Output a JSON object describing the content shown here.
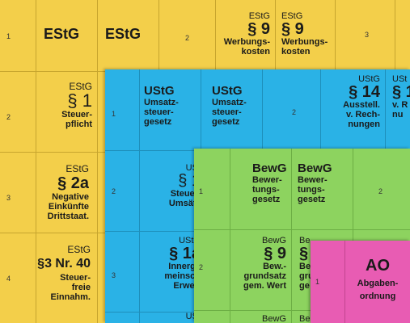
{
  "estg": {
    "rows": [
      {
        "num": "1",
        "col1": "EStG",
        "col2": "EStG",
        "col3num": "2",
        "code": "EStG",
        "para": "§ 9",
        "sub": [
          "Werbungs-",
          "kosten"
        ],
        "code2": "EStG",
        "para2": "§ 9",
        "sub2": [
          "Werbungs-",
          "kosten"
        ],
        "col6num": "3"
      },
      {
        "num": "2",
        "code": "EStG",
        "para": "§ 1",
        "sub": [
          "Steuer-",
          "pflicht"
        ]
      },
      {
        "num": "3",
        "code": "EStG",
        "para": "§ 2a",
        "sub": [
          "Negative",
          "Einkünfte",
          "Drittstaat."
        ]
      },
      {
        "num": "4",
        "code": "EStG",
        "para": "§3 Nr. 40",
        "sub": [
          "Steuer-",
          "freie",
          "Einnahm."
        ]
      }
    ]
  },
  "ustg": {
    "row1_num": "1",
    "title1": "UStG",
    "title2": "UStG",
    "sub": [
      "Umsatz-",
      "steuer-",
      "gesetz"
    ],
    "row1_mid": "2",
    "code": "UStG",
    "para": "§ 14",
    "para_sub": [
      "Ausstell.",
      "v. Rech-",
      "nungen"
    ],
    "code_partial": "USt",
    "para_partial": "§ 1",
    "sub_partial": [
      "v. R",
      "nu"
    ],
    "row2_num": "2",
    "row2_code": "USt",
    "row2_para": "§ 1",
    "row2_sub": [
      "Steuerl",
      "Umsätz"
    ],
    "row3_num": "3",
    "row3_code": "UStG",
    "row3_para": "§ 1a",
    "row3_sub": [
      "Innerge",
      "meinsch",
      "Erwerl"
    ],
    "row4_code": "USt"
  },
  "bewg": {
    "row1_num": "1",
    "title1": "BewG",
    "title2": "BewG",
    "sub": [
      "Bewer-",
      "tungs-",
      "gesetz"
    ],
    "row1_mid": "2",
    "row2_num": "2",
    "row2_code": "BewG",
    "row2_para": "§ 9",
    "row2_sub": [
      "Bew.-",
      "grundsatz",
      "gem. Wert"
    ],
    "row2_code2": "Be",
    "row2_para2": "§",
    "row2_sub2": [
      "Be",
      "gru",
      "ge"
    ],
    "row3_code": "BewG",
    "row3_code2": "Be"
  },
  "ao": {
    "num": "1",
    "title": "AO",
    "sub": "Abgaben-",
    "sub2": "ordnung"
  },
  "colors": {
    "yellow": "#f3cf4a",
    "blue": "#2ab2e6",
    "green": "#8dd35f",
    "pink": "#e85cb3"
  }
}
